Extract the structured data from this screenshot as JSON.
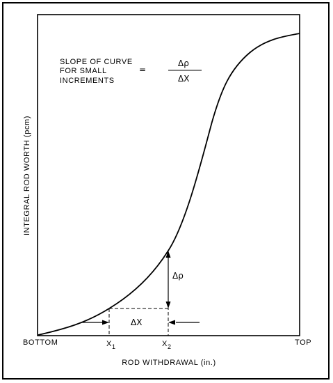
{
  "figure": {
    "y_axis_label": "INTEGRAL ROD WORTH (pcm)",
    "x_axis_label": "ROD WITHDRAWAL (in.)",
    "x_left_label": "BOTTOM",
    "x_right_label": "TOP",
    "x1_label": "X",
    "x1_sub": "1",
    "x2_label": "X",
    "x2_sub": "2",
    "delta_x_label": "ΔX",
    "delta_rho_label": "Δρ",
    "slope_text_line1": "SLOPE OF CURVE",
    "slope_text_line2": "FOR SMALL",
    "slope_text_line3": "INCREMENTS",
    "equals_sign": "=",
    "fraction_numerator": "Δρ",
    "fraction_denominator": "ΔX"
  }
}
